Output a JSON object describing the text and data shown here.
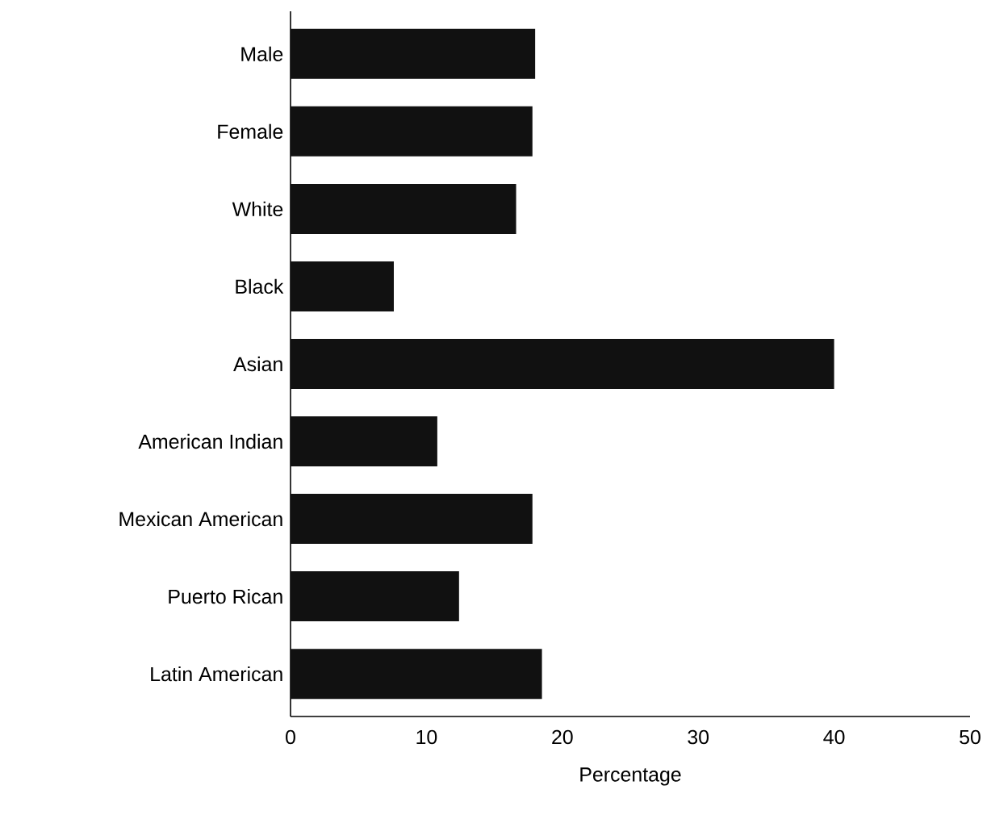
{
  "chart_data": {
    "type": "bar",
    "orientation": "horizontal",
    "xlabel": "Percentage",
    "categories": [
      "Male",
      "Female",
      "White",
      "Black",
      "Asian",
      "American Indian",
      "Mexican American",
      "Puerto Rican",
      "Latin American"
    ],
    "values": [
      18,
      17.8,
      16.6,
      7.6,
      40,
      10.8,
      17.8,
      12.4,
      18.5
    ],
    "color": "#111111",
    "xlim": [
      0,
      50
    ],
    "xticks": [
      0,
      10,
      20,
      30,
      40,
      50
    ]
  }
}
